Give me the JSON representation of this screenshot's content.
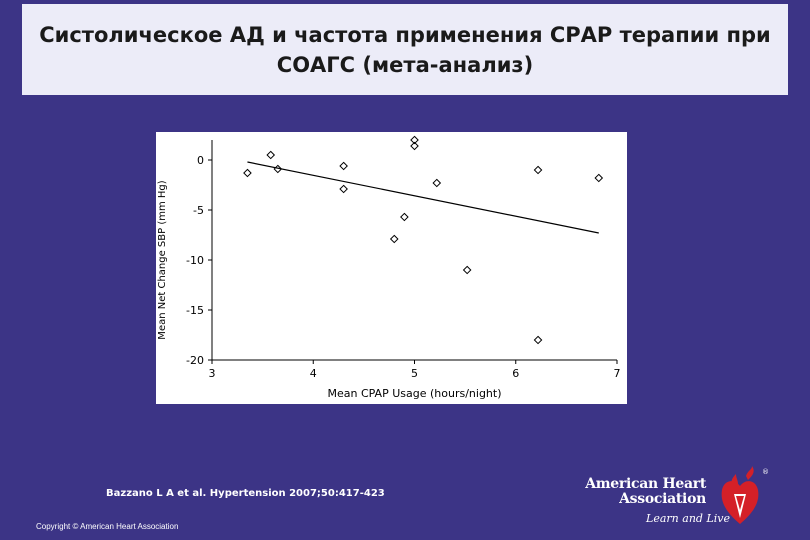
{
  "slide": {
    "title_line1": "Систолическое АД и частота применения СРАР терапии при",
    "title_line2": "СОАГС (мета-анализ)",
    "citation": "Bazzano L A et al. Hypertension 2007;50:417-423",
    "copyright": "Copyright © American Heart Association"
  },
  "logo": {
    "line1": "American Heart",
    "line2": "Association",
    "tagline": "Learn and Live",
    "registered_mark": "®"
  },
  "colors": {
    "background": "#3c3486",
    "title_box": "#ececf8",
    "logo_red": "#d42028"
  },
  "chart_data": {
    "type": "scatter",
    "xlabel": "Mean CPAP Usage (hours/night)",
    "ylabel": "Mean Net Change SBP (mm Hg)",
    "xlim": [
      3,
      7
    ],
    "ylim": [
      -20,
      2
    ],
    "x_ticks": [
      "3",
      "4",
      "5",
      "6",
      "7"
    ],
    "y_ticks": [
      "0",
      "-5",
      "-10",
      "-15",
      "-20"
    ],
    "marker": "hollow diamond",
    "points": [
      {
        "x": 3.35,
        "y": -1.3
      },
      {
        "x": 3.58,
        "y": 0.5
      },
      {
        "x": 3.65,
        "y": -0.9
      },
      {
        "x": 4.3,
        "y": -0.6
      },
      {
        "x": 4.3,
        "y": -2.9
      },
      {
        "x": 4.8,
        "y": -7.9
      },
      {
        "x": 4.9,
        "y": -5.7
      },
      {
        "x": 5.0,
        "y": 2.0
      },
      {
        "x": 5.0,
        "y": 1.4
      },
      {
        "x": 5.22,
        "y": -2.3
      },
      {
        "x": 5.52,
        "y": -11.0
      },
      {
        "x": 6.22,
        "y": -1.0
      },
      {
        "x": 6.22,
        "y": -18.0
      },
      {
        "x": 6.82,
        "y": -1.8
      }
    ],
    "fit_line": {
      "x": [
        3.35,
        6.82
      ],
      "y": [
        -0.2,
        -7.3
      ]
    }
  }
}
